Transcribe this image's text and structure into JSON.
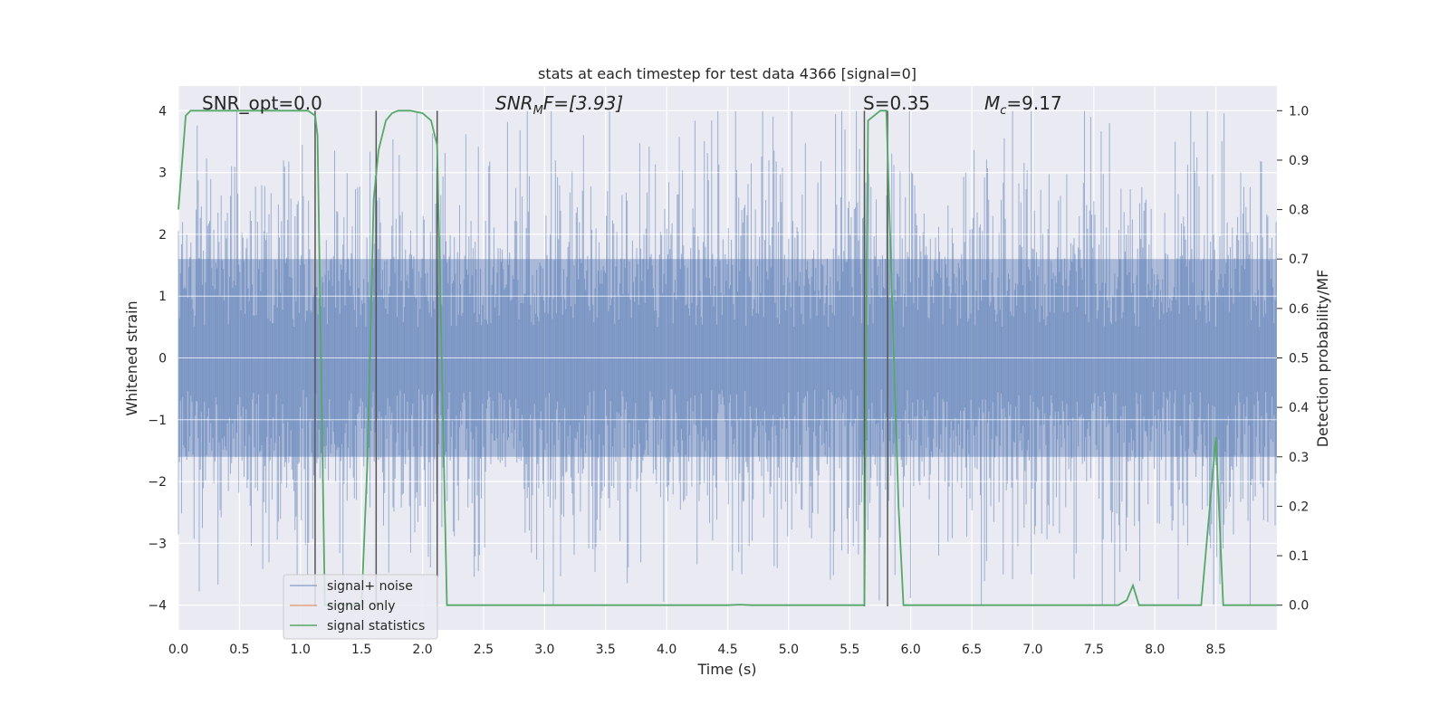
{
  "chart_data": {
    "type": "line",
    "title": "stats at each timestep for test data 4366 [signal=0]",
    "xlabel": "Time (s)",
    "ylabel": "Whitened strain",
    "y2label": "Detection probability/MF",
    "xlim": [
      0.0,
      9.0
    ],
    "ylim": [
      -4.4,
      4.4
    ],
    "y2lim": [
      -0.05,
      1.05
    ],
    "x_ticks": [
      "0.0",
      "0.5",
      "1.0",
      "1.5",
      "2.0",
      "2.5",
      "3.0",
      "3.5",
      "4.0",
      "4.5",
      "5.0",
      "5.5",
      "6.0",
      "6.5",
      "7.0",
      "7.5",
      "8.0",
      "8.5"
    ],
    "y_ticks": [
      "4",
      "3",
      "2",
      "1",
      "0",
      "−1",
      "−2",
      "−3",
      "−4"
    ],
    "y2_ticks": [
      "1.0",
      "0.9",
      "0.8",
      "0.7",
      "0.6",
      "0.5",
      "0.4",
      "0.3",
      "0.2",
      "0.1",
      "0.0"
    ],
    "grid": true,
    "legend_position": "lower-left",
    "series": [
      {
        "name": "signal+ noise",
        "color": "#4c72b0",
        "axis": "left",
        "style": "noise-band",
        "amplitude_typical": 1.5,
        "amplitude_peak": 4.0,
        "x_range": [
          0.0,
          9.0
        ]
      },
      {
        "name": "signal only",
        "color": "#dd8452",
        "axis": "left",
        "x": [],
        "y": []
      },
      {
        "name": "signal statistics",
        "color": "#55a868",
        "axis": "right",
        "x": [
          0.0,
          0.06,
          0.1,
          0.15,
          0.5,
          1.0,
          1.06,
          1.12,
          1.14,
          1.2,
          1.5,
          1.55,
          1.6,
          1.64,
          1.7,
          1.75,
          1.8,
          1.85,
          1.9,
          2.0,
          2.07,
          2.12,
          2.2,
          2.25,
          3.0,
          4.5,
          4.6,
          4.7,
          5.0,
          5.5,
          5.62,
          5.65,
          5.7,
          5.75,
          5.8,
          5.85,
          5.9,
          5.94,
          6.0,
          6.5,
          7.0,
          7.5,
          7.7,
          7.77,
          7.82,
          7.87,
          7.95,
          8.0,
          8.38,
          8.5,
          8.56,
          8.6,
          8.9,
          9.0
        ],
        "y": [
          0.8,
          0.99,
          1.0,
          1.0,
          1.0,
          1.0,
          1.0,
          0.99,
          0.95,
          0.0,
          0.0,
          0.3,
          0.82,
          0.92,
          0.98,
          0.995,
          1.0,
          1.0,
          1.0,
          0.995,
          0.98,
          0.93,
          0.0,
          0.0,
          0.0,
          0.0,
          0.001,
          0.0,
          0.0,
          0.0,
          0.0,
          0.98,
          0.99,
          1.0,
          1.0,
          0.6,
          0.2,
          0.0,
          0.0,
          0.0,
          0.0,
          0.0,
          0.0,
          0.01,
          0.04,
          0.0,
          0.0,
          0.0,
          0.0,
          0.34,
          0.0,
          0.0,
          0.0,
          0.0
        ]
      }
    ],
    "vlines": [
      1.12,
      1.62,
      2.12,
      5.62,
      5.81
    ],
    "annotations": [
      "SNR_opt=0.0",
      "SNR",
      "M",
      "F=[3.93]",
      "S=0.35",
      "M",
      "c",
      "=9.17"
    ]
  }
}
